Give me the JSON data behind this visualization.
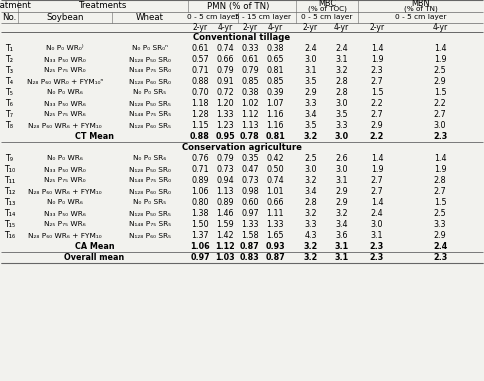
{
  "year_headers": [
    "2-yr",
    "4-yr",
    "2-yr",
    "4-yr",
    "2-yr",
    "4-yr",
    "2-yr",
    "4-yr"
  ],
  "rows": [
    {
      "no": "T₁",
      "soybean": "N₀ P₀ WR₀⁾",
      "wheat": "N₀ P₀ SR₀ⁿ",
      "vals": [
        0.61,
        0.74,
        0.33,
        0.38,
        2.4,
        2.4,
        1.4,
        1.4
      ],
      "bold": false
    },
    {
      "no": "T₂",
      "soybean": "N₃₃ P₅₀ WR₀",
      "wheat": "N₁₂₈ P₅₀ SR₀",
      "vals": [
        0.57,
        0.66,
        0.61,
        0.65,
        3.0,
        3.1,
        1.9,
        1.9
      ],
      "bold": false
    },
    {
      "no": "T₃",
      "soybean": "N₂₅ P₇₅ WR₀",
      "wheat": "N₁₄₈ P₇₅ SR₀",
      "vals": [
        0.71,
        0.79,
        0.79,
        0.81,
        3.1,
        3.2,
        2.3,
        2.5
      ],
      "bold": false
    },
    {
      "no": "T₄",
      "soybean": "N₂₈ P₆₀ WR₀ + FYM₁₀ⁿ",
      "wheat": "N₁₂₈ P₆₀ SR₀",
      "vals": [
        0.88,
        0.91,
        0.85,
        0.85,
        3.5,
        2.8,
        2.7,
        2.9
      ],
      "bold": false
    },
    {
      "no": "T₅",
      "soybean": "N₀ P₀ WR₆",
      "wheat": "N₀ P₀ SR₅",
      "vals": [
        0.7,
        0.72,
        0.38,
        0.39,
        2.9,
        2.8,
        1.5,
        1.5
      ],
      "bold": false
    },
    {
      "no": "T₆",
      "soybean": "N₃₃ P₅₀ WR₆",
      "wheat": "N₁₂₈ P₅₀ SR₅",
      "vals": [
        1.18,
        1.2,
        1.02,
        1.07,
        3.3,
        3.0,
        2.2,
        2.2
      ],
      "bold": false
    },
    {
      "no": "T₇",
      "soybean": "N₂₅ P₇₅ WR₆",
      "wheat": "N₁₄₈ P₇₅ SR₅",
      "vals": [
        1.28,
        1.33,
        1.12,
        1.16,
        3.4,
        3.5,
        2.7,
        2.7
      ],
      "bold": false
    },
    {
      "no": "T₈",
      "soybean": "N₂₈ P₆₀ WR₆ + FYM₁₀",
      "wheat": "N₁₂₈ P₆₀ SR₅",
      "vals": [
        1.15,
        1.23,
        1.13,
        1.16,
        3.5,
        3.3,
        2.9,
        3.0
      ],
      "bold": false
    },
    {
      "no": "",
      "soybean": "CT Mean",
      "wheat": "",
      "vals": [
        0.88,
        0.95,
        0.78,
        0.81,
        3.2,
        3.0,
        2.2,
        2.3
      ],
      "bold": true
    },
    {
      "no": "T₉",
      "soybean": "N₀ P₀ WR₆",
      "wheat": "N₀ P₀ SR₆",
      "vals": [
        0.76,
        0.79,
        0.35,
        0.42,
        2.5,
        2.6,
        1.4,
        1.4
      ],
      "bold": false
    },
    {
      "no": "T₁₀",
      "soybean": "N₃₃ P₅₀ WR₀",
      "wheat": "N₁₂₈ P₅₀ SR₀",
      "vals": [
        0.71,
        0.73,
        0.47,
        0.5,
        3.0,
        3.0,
        1.9,
        1.9
      ],
      "bold": false
    },
    {
      "no": "T₁₁",
      "soybean": "N₂₅ P₇₅ WR₀",
      "wheat": "N₁₄₈ P₇₅ SR₀",
      "vals": [
        0.89,
        0.94,
        0.73,
        0.74,
        3.2,
        3.1,
        2.7,
        2.8
      ],
      "bold": false
    },
    {
      "no": "T₁₂",
      "soybean": "N₂₈ P₆₀ WR₆ + FYM₁₀",
      "wheat": "N₁₂₈ P₆₀ SR₀",
      "vals": [
        1.06,
        1.13,
        0.98,
        1.01,
        3.4,
        2.9,
        2.7,
        2.7
      ],
      "bold": false
    },
    {
      "no": "T₁₃",
      "soybean": "N₀ P₀ WR₆",
      "wheat": "N₀ P₀ SR₅",
      "vals": [
        0.8,
        0.89,
        0.6,
        0.66,
        2.8,
        2.9,
        1.4,
        1.5
      ],
      "bold": false
    },
    {
      "no": "T₁₄",
      "soybean": "N₃₃ P₅₀ WR₆",
      "wheat": "N₁₂₈ P₅₀ SR₅",
      "vals": [
        1.38,
        1.46,
        0.97,
        1.11,
        3.2,
        3.2,
        2.4,
        2.5
      ],
      "bold": false
    },
    {
      "no": "T₁₅",
      "soybean": "N₂₅ P₇₅ WR₆",
      "wheat": "N₁₄₈ P₇₅ SR₅",
      "vals": [
        1.5,
        1.59,
        1.33,
        1.33,
        3.3,
        3.4,
        3.0,
        3.3
      ],
      "bold": false
    },
    {
      "no": "T₁₆",
      "soybean": "N₂₈ P₆₀ WR₆ + FYM₁₀",
      "wheat": "N₁₂₈ P₆₀ SR₅",
      "vals": [
        1.37,
        1.42,
        1.58,
        1.65,
        4.3,
        3.6,
        3.1,
        2.9
      ],
      "bold": false
    },
    {
      "no": "",
      "soybean": "CA Mean",
      "wheat": "",
      "vals": [
        1.06,
        1.12,
        0.87,
        0.93,
        3.2,
        3.1,
        2.3,
        2.4
      ],
      "bold": true
    },
    {
      "no": "",
      "soybean": "Overall mean",
      "wheat": "",
      "vals": [
        0.97,
        1.03,
        0.83,
        0.87,
        3.2,
        3.1,
        2.3,
        2.3
      ],
      "bold": true
    }
  ],
  "section_breaks": {
    "0": "Conventional tillage",
    "9": "Conservation agriculture"
  },
  "bg_color": "#f2f2ee",
  "line_color": "#666666",
  "font_size": 5.8,
  "header_font_size": 6.2
}
